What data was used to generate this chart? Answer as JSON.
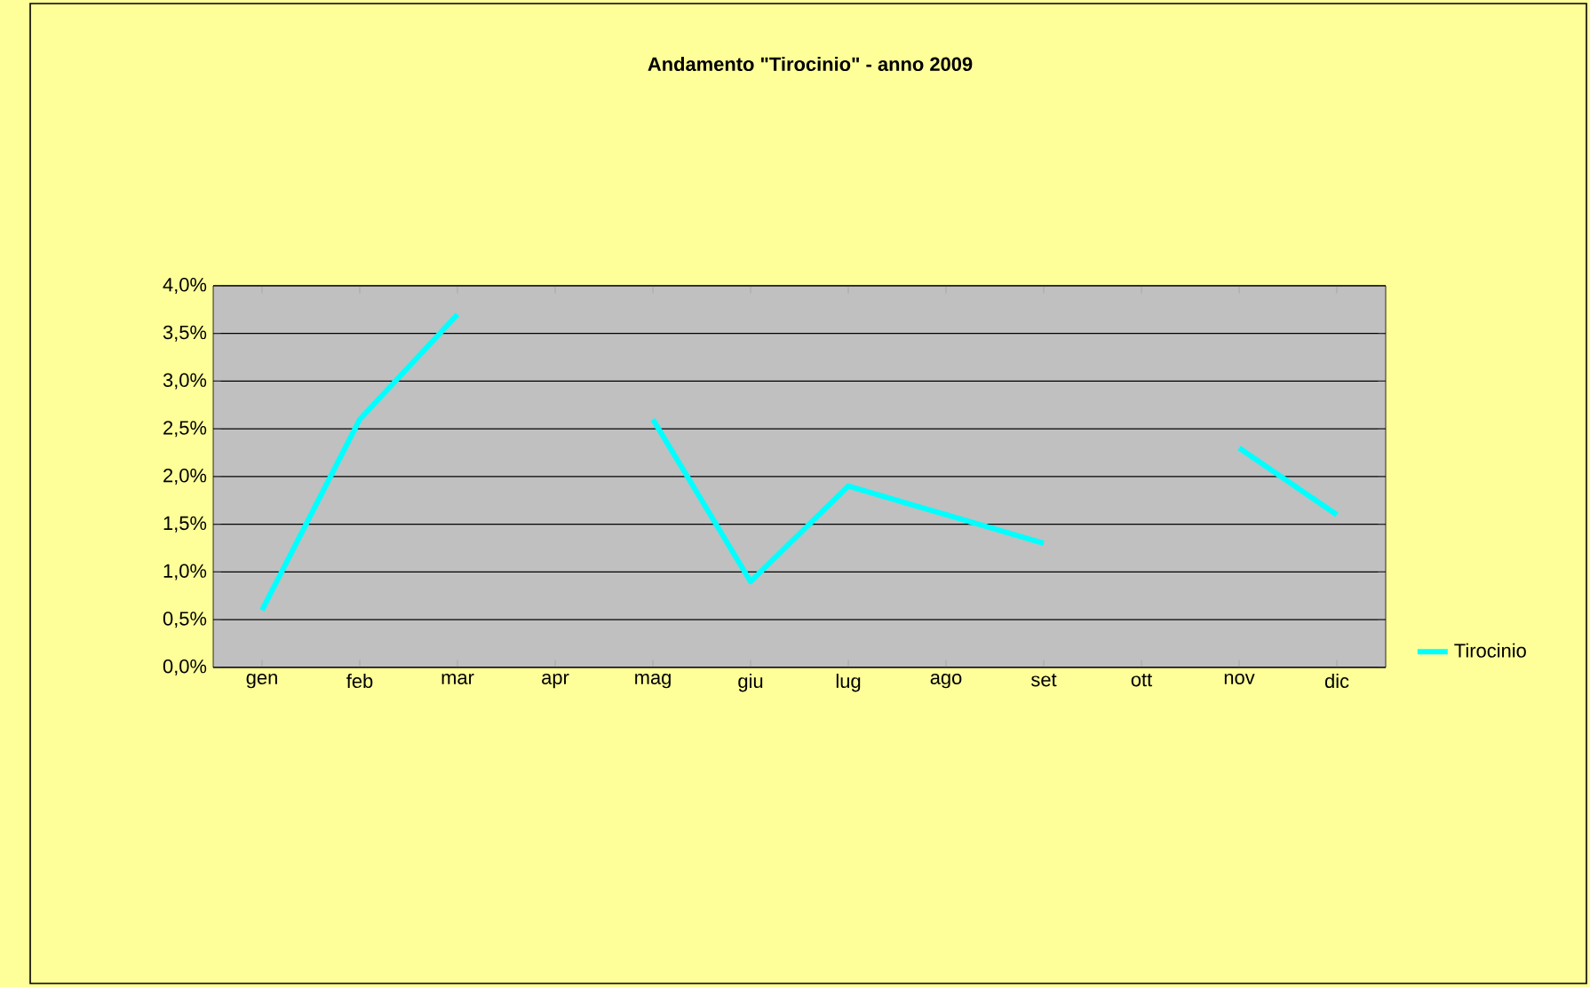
{
  "chart_data": {
    "type": "line",
    "title": "Andamento \"Tirocinio\" - anno 2009",
    "categories": [
      "gen",
      "feb",
      "mar",
      "apr",
      "mag",
      "giu",
      "lug",
      "ago",
      "set",
      "ott",
      "nov",
      "dic"
    ],
    "series": [
      {
        "name": "Tirocinio",
        "color": "#00ffff",
        "values": [
          0.6,
          2.6,
          3.7,
          null,
          2.6,
          0.9,
          1.9,
          1.6,
          1.3,
          null,
          2.3,
          1.6
        ]
      }
    ],
    "ylim": [
      0,
      4
    ],
    "yticks": [
      {
        "value": 0,
        "label": "0,0%"
      },
      {
        "value": 0.5,
        "label": "0,5%"
      },
      {
        "value": 1,
        "label": "1,0%"
      },
      {
        "value": 1.5,
        "label": "1,5%"
      },
      {
        "value": 2,
        "label": "2,0%"
      },
      {
        "value": 2.5,
        "label": "2,5%"
      },
      {
        "value": 3,
        "label": "3,0%"
      },
      {
        "value": 3.5,
        "label": "3,5%"
      },
      {
        "value": 4,
        "label": "4,0%"
      }
    ],
    "grid": "y",
    "legend": "right",
    "marker": "none",
    "line_style": "solid"
  }
}
